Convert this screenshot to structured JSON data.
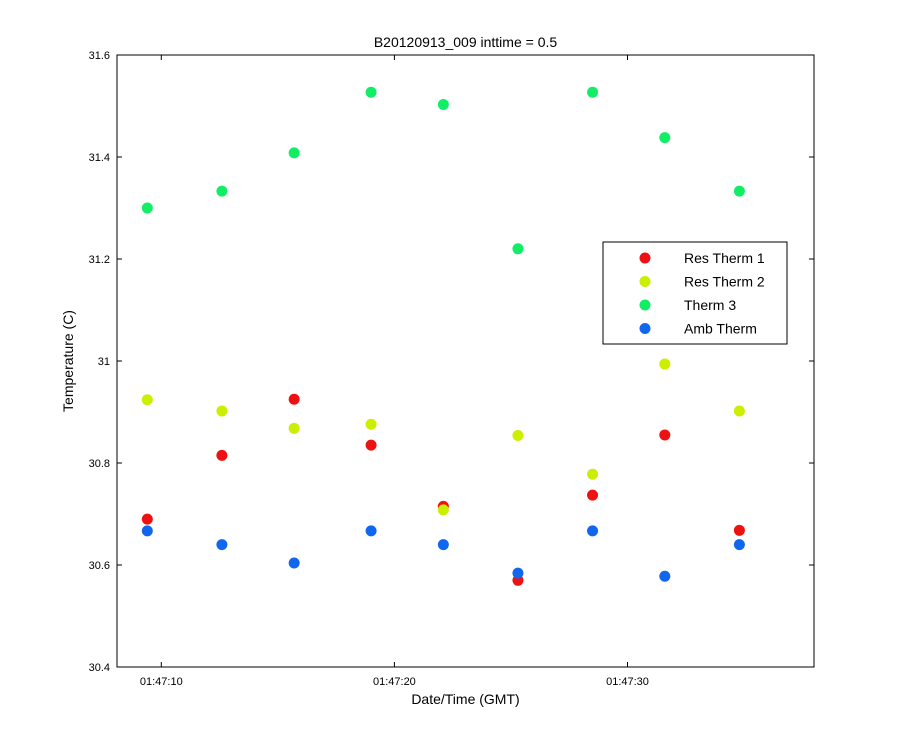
{
  "chart_data": {
    "type": "scatter",
    "title": "B20120913_009 inttime = 0.5",
    "xlabel": "Date/Time (GMT)",
    "ylabel": "Temperature (C)",
    "xlim": [
      "01:47:08.1",
      "01:47:38.0"
    ],
    "ylim": [
      30.4,
      31.6
    ],
    "xticks": [
      {
        "value": "01:47:10",
        "label": "01:47:10"
      },
      {
        "value": "01:47:20",
        "label": "01:47:20"
      },
      {
        "value": "01:47:30",
        "label": "01:47:30"
      }
    ],
    "yticks": [
      {
        "value": 30.4,
        "label": "30.4"
      },
      {
        "value": 30.6,
        "label": "30.6"
      },
      {
        "value": 30.8,
        "label": "30.8"
      },
      {
        "value": 31.0,
        "label": "31"
      },
      {
        "value": 31.2,
        "label": "31.2"
      },
      {
        "value": 31.4,
        "label": "31.4"
      },
      {
        "value": 31.6,
        "label": "31.6"
      }
    ],
    "grid": false,
    "legend_position": "right",
    "x": [
      "01:47:09.4",
      "01:47:12.6",
      "01:47:15.7",
      "01:47:19.0",
      "01:47:22.1",
      "01:47:25.3",
      "01:47:28.5",
      "01:47:31.6",
      "01:47:34.8"
    ],
    "series": [
      {
        "name": "Res Therm 1",
        "color": "#ee1111",
        "values": [
          30.69,
          30.815,
          30.925,
          30.835,
          30.715,
          30.57,
          30.737,
          30.855,
          30.668
        ]
      },
      {
        "name": "Res Therm 2",
        "color": "#ccee00",
        "values": [
          30.924,
          30.902,
          30.868,
          30.876,
          30.708,
          30.854,
          30.778,
          30.994,
          30.902
        ]
      },
      {
        "name": "Therm 3",
        "color": "#11ee66",
        "values": [
          31.3,
          31.333,
          31.408,
          31.527,
          31.503,
          31.22,
          31.527,
          31.438,
          31.333
        ]
      },
      {
        "name": "Amb Therm",
        "color": "#1166ee",
        "values": [
          30.667,
          30.64,
          30.604,
          30.667,
          30.64,
          30.584,
          30.667,
          30.578,
          30.64
        ]
      }
    ]
  }
}
